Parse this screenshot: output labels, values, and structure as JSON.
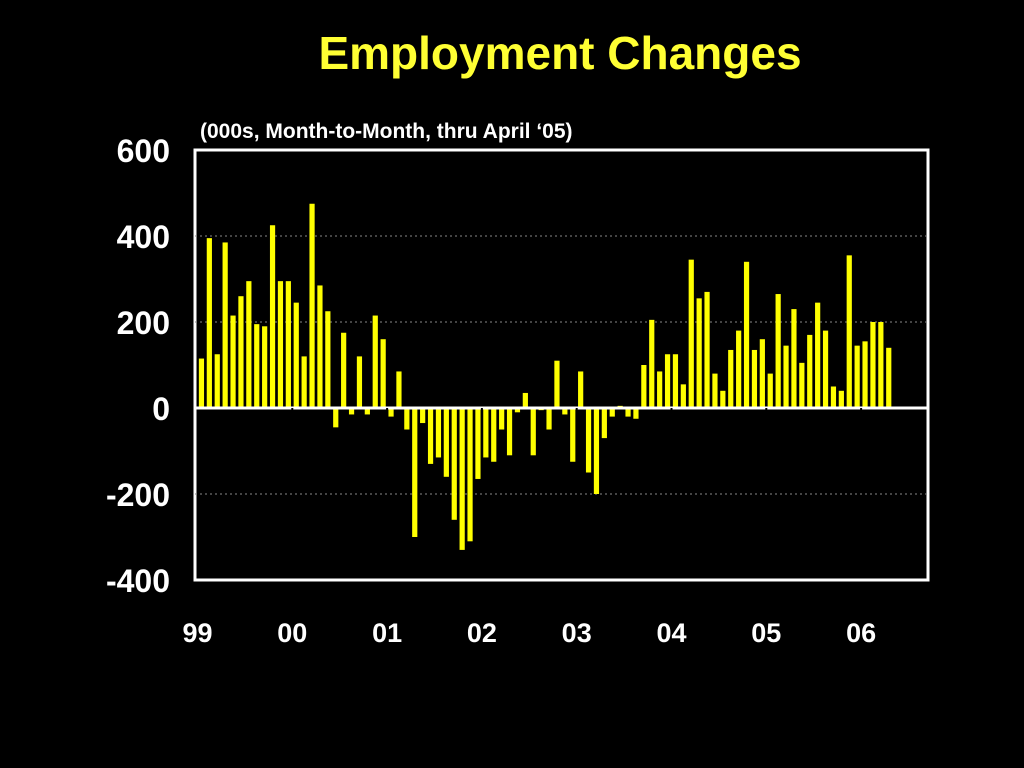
{
  "chart_data": {
    "type": "bar",
    "title": "Employment Changes",
    "subtitle": "(000s, Month-to-Month, thru April ‘05)",
    "xlabel": "",
    "ylabel": "",
    "ylim": [
      -400,
      600
    ],
    "yticks": [
      "600",
      "400",
      "200",
      "0",
      "-200",
      "-400"
    ],
    "ytick_values": [
      600,
      400,
      200,
      0,
      -200,
      -400
    ],
    "xticks": [
      "99",
      "00",
      "01",
      "02",
      "03",
      "04",
      "05",
      "06"
    ],
    "grid": "dotted-horizontal",
    "bar_color": "#FFFF00",
    "values": [
      115,
      395,
      125,
      385,
      215,
      260,
      295,
      195,
      190,
      425,
      295,
      295,
      245,
      120,
      475,
      285,
      225,
      -45,
      175,
      -15,
      120,
      -15,
      215,
      160,
      -20,
      85,
      -50,
      -300,
      -35,
      -130,
      -115,
      -160,
      -260,
      -330,
      -310,
      -165,
      -115,
      -125,
      -50,
      -110,
      -10,
      35,
      -110,
      -5,
      -50,
      110,
      -15,
      -125,
      85,
      -150,
      -200,
      -70,
      -20,
      5,
      -20,
      -25,
      100,
      205,
      85,
      125,
      125,
      55,
      345,
      255,
      270,
      80,
      40,
      135,
      180,
      340,
      135,
      160,
      80,
      265,
      145,
      230,
      105,
      170,
      245,
      180,
      50,
      40,
      355,
      145,
      155,
      200,
      200,
      140
    ]
  },
  "colors": {
    "title": "#FFFF33",
    "text": "#FFFFFF",
    "background": "#000000"
  }
}
